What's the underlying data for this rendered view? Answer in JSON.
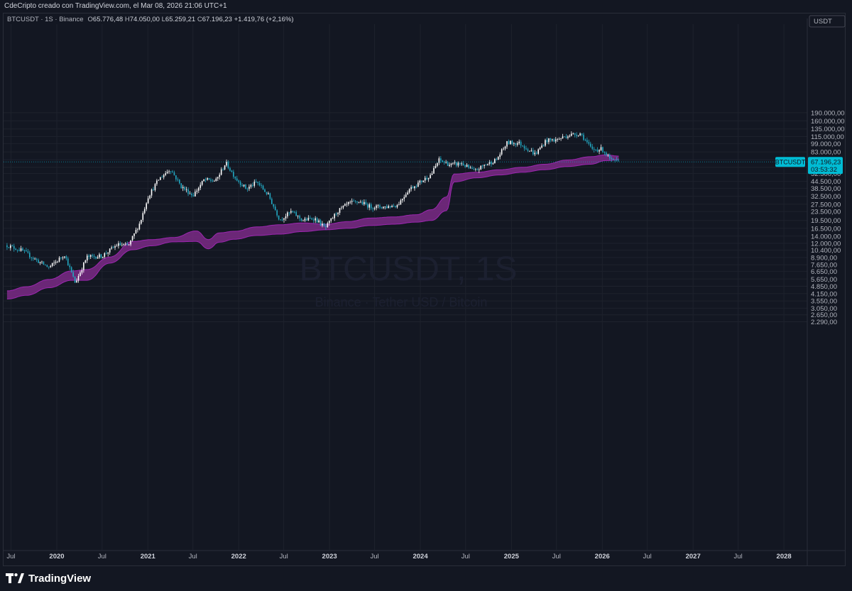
{
  "header": {
    "caption": "CdeCripto creado con TradingView.com, el Mar 08, 2026 21:06 UTC+1"
  },
  "legend": {
    "symbol_line": "BTCUSDT · 1S · Binance",
    "open_label": "O",
    "open": "65.776,48",
    "high_label": "H",
    "high": "74.050,00",
    "low_label": "L",
    "low": "65.259,21",
    "close_label": "C",
    "close": "67.196,23",
    "change": "+1.419,76 (+2,16%)"
  },
  "watermark": {
    "symbol": "BTCUSDT, 1S",
    "subtitle": "Binance · Tether USD / Bitcoin"
  },
  "price_axis": {
    "currency": "USDT",
    "last_price_tag": "67.196,23",
    "last_symbol_tag": "BTCUSDT",
    "countdown": "03:53:32"
  },
  "branding": {
    "logo_text": "TradingView"
  },
  "colors": {
    "background": "#131722",
    "bull_candle": "#ffffff",
    "bear_candle": "#22a8c2",
    "band_fill": "#7b2a86",
    "band_edge": "#9c27b0",
    "price_tag": "#00bcd4",
    "grid": "#1e222d"
  },
  "chart_data": {
    "type": "line",
    "title": "BTCUSDT, 1S",
    "scale": "log",
    "x_labels": [
      "Jul",
      "2020",
      "Jul",
      "2021",
      "Jul",
      "2022",
      "Jul",
      "2023",
      "Jul",
      "2024",
      "Jul",
      "2025",
      "Jul",
      "2026",
      "Jul",
      "2027",
      "Jul",
      "2028"
    ],
    "y_tick_labels": [
      "190.000,00",
      "160.000,00",
      "135.000,00",
      "115.000,00",
      "99.000,00",
      "83.000,00",
      "70.500,00",
      "60.000,00",
      "52.500,00",
      "44.500,00",
      "38.500,00",
      "32.500,00",
      "27.500,00",
      "23.500,00",
      "19.500,00",
      "16.500,00",
      "14.000,00",
      "12.000,00",
      "10.400,00",
      "8.900,00",
      "7.650,00",
      "6.650,00",
      "5.650,00",
      "4.850,00",
      "4.150,00",
      "3.550,00",
      "3.050,00",
      "2.650,00",
      "2.290,00"
    ],
    "y_tick_values": [
      190000,
      160000,
      135000,
      115000,
      99000,
      83000,
      70500,
      60000,
      52500,
      44500,
      38500,
      32500,
      27500,
      23500,
      19500,
      16500,
      14000,
      12000,
      10400,
      8900,
      7650,
      6650,
      5650,
      4850,
      4150,
      3550,
      3050,
      2650,
      2290
    ],
    "ylim": [
      2000,
      240000
    ],
    "series": [
      {
        "type": "candles",
        "dates": [
          "2019-06-15",
          "2019-08-15",
          "2019-10-15",
          "2019-12-01",
          "2020-02-01",
          "2020-03-15",
          "2020-05-01",
          "2020-07-01",
          "2020-09-01",
          "2020-10-15",
          "2020-12-01",
          "2021-01-01",
          "2021-02-15",
          "2021-04-01",
          "2021-05-15",
          "2021-07-01",
          "2021-08-15",
          "2021-10-01",
          "2021-11-10",
          "2021-12-20",
          "2022-02-01",
          "2022-03-15",
          "2022-05-01",
          "2022-06-15",
          "2022-08-01",
          "2022-09-15",
          "2022-11-01",
          "2022-12-15",
          "2023-02-01",
          "2023-03-20",
          "2023-05-01",
          "2023-06-15",
          "2023-08-15",
          "2023-10-01",
          "2023-11-15",
          "2024-01-01",
          "2024-02-15",
          "2024-03-15",
          "2024-05-01",
          "2024-06-15",
          "2024-08-05",
          "2024-09-15",
          "2024-11-01",
          "2024-12-15",
          "2025-02-01",
          "2025-04-07",
          "2025-05-20",
          "2025-07-01",
          "2025-08-15",
          "2025-10-06",
          "2025-11-20",
          "2026-01-01",
          "2026-02-06",
          "2026-03-08"
        ],
        "close": [
          11500,
          10300,
          8300,
          7200,
          9500,
          5200,
          9000,
          9200,
          11700,
          11400,
          18800,
          32000,
          47000,
          58000,
          40000,
          33000,
          46000,
          45000,
          66000,
          47500,
          38000,
          44000,
          33000,
          19800,
          23500,
          19500,
          20500,
          16600,
          23500,
          28000,
          29000,
          26000,
          26000,
          27000,
          37500,
          44000,
          52000,
          70000,
          63000,
          65000,
          55000,
          63000,
          70000,
          101000,
          100000,
          79000,
          106000,
          107000,
          118000,
          123000,
          87000,
          88000,
          69000,
          67196
        ]
      },
      {
        "type": "band",
        "name": "",
        "dates": [
          "2019-06-15",
          "2019-09-01",
          "2019-12-01",
          "2020-03-01",
          "2020-05-01",
          "2020-08-01",
          "2020-11-01",
          "2021-01-15",
          "2021-04-15",
          "2021-07-15",
          "2021-09-01",
          "2021-10-15",
          "2021-12-15",
          "2022-03-15",
          "2022-06-15",
          "2022-09-15",
          "2022-12-15",
          "2023-03-15",
          "2023-06-15",
          "2023-09-15",
          "2023-12-15",
          "2024-02-15",
          "2024-04-15",
          "2024-05-15",
          "2024-08-15",
          "2024-11-15",
          "2025-02-15",
          "2025-05-15",
          "2025-08-15",
          "2025-11-15",
          "2026-01-15",
          "2026-03-08"
        ],
        "upper": [
          4400,
          4800,
          5600,
          6700,
          6900,
          9000,
          12500,
          13000,
          13600,
          15600,
          13000,
          15000,
          15500,
          17000,
          17800,
          18500,
          18000,
          19000,
          20500,
          21000,
          22000,
          24500,
          32000,
          52000,
          54000,
          57000,
          60000,
          64000,
          70000,
          75000,
          78000,
          76000
        ],
        "lower": [
          3700,
          4000,
          4700,
          5500,
          5500,
          7900,
          10500,
          11400,
          12400,
          12500,
          10700,
          12300,
          13100,
          14200,
          14600,
          15400,
          16000,
          16500,
          17500,
          18000,
          18800,
          19500,
          24000,
          44000,
          48000,
          51000,
          54000,
          57000,
          61000,
          64000,
          69000,
          70000
        ]
      }
    ]
  }
}
